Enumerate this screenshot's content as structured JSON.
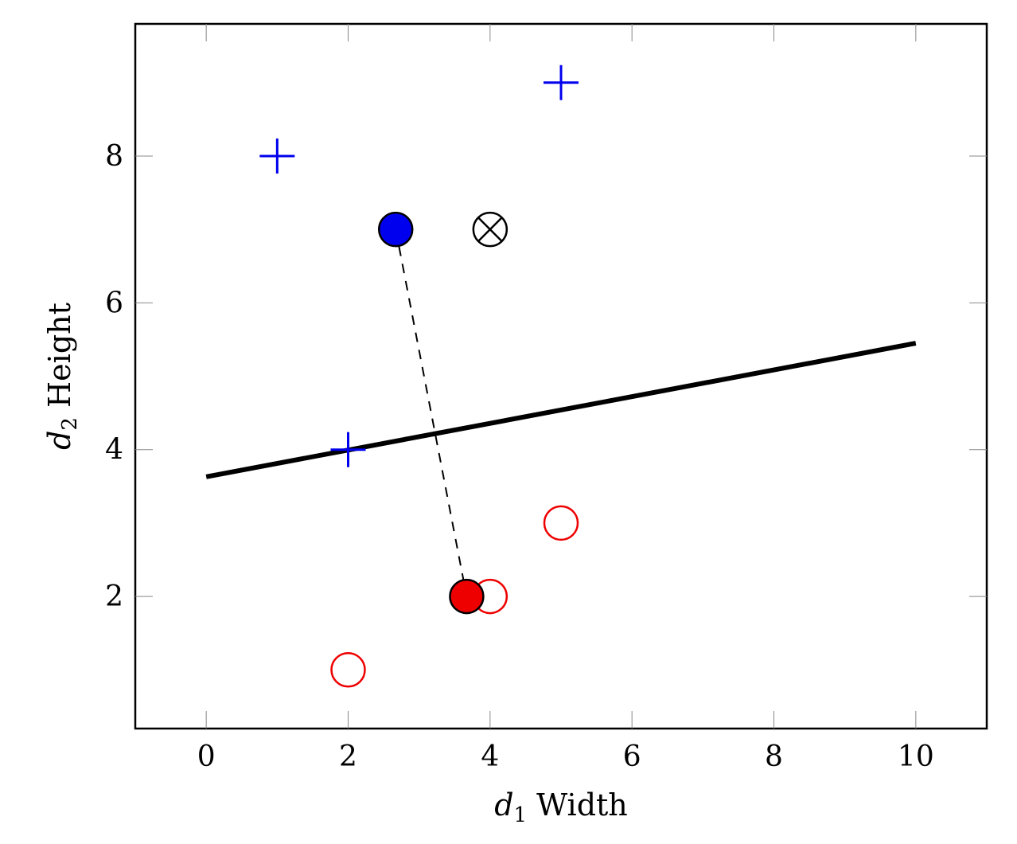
{
  "chart_data": {
    "type": "scatter",
    "xlabel": {
      "var": "d",
      "sub": "1",
      "text": " Width"
    },
    "ylabel": {
      "var": "d",
      "sub": "2",
      "text": " Height"
    },
    "xlim": [
      -1,
      11
    ],
    "ylim": [
      0.2,
      9.8
    ],
    "xticks": [
      0,
      2,
      4,
      6,
      8,
      10
    ],
    "yticks": [
      2,
      4,
      6,
      8
    ],
    "grid": false,
    "legend": "none",
    "series": [
      {
        "marker": "plus",
        "color": "#0000ee",
        "points": [
          {
            "x": 1,
            "y": 8
          },
          {
            "x": 5,
            "y": 9
          },
          {
            "x": 2,
            "y": 4
          }
        ]
      },
      {
        "marker": "circle-open",
        "color": "#ee0000",
        "points": [
          {
            "x": 5,
            "y": 3
          },
          {
            "x": 4,
            "y": 2
          },
          {
            "x": 2,
            "y": 1
          }
        ]
      }
    ],
    "centroids": [
      {
        "x": 2.67,
        "y": 7,
        "fill": "#0000ee",
        "stroke": "#000000"
      },
      {
        "x": 3.67,
        "y": 2,
        "fill": "#ee0000",
        "stroke": "#000000"
      }
    ],
    "connector": {
      "from": [
        2.67,
        7
      ],
      "to": [
        3.67,
        2
      ],
      "style": "dashed",
      "color": "#000000"
    },
    "query_point": {
      "x": 4,
      "y": 7,
      "marker": "circle-cross",
      "color": "#000000"
    },
    "decision_boundary": {
      "from": [
        0,
        3.63
      ],
      "to": [
        10,
        5.45
      ],
      "color": "#000000"
    }
  }
}
